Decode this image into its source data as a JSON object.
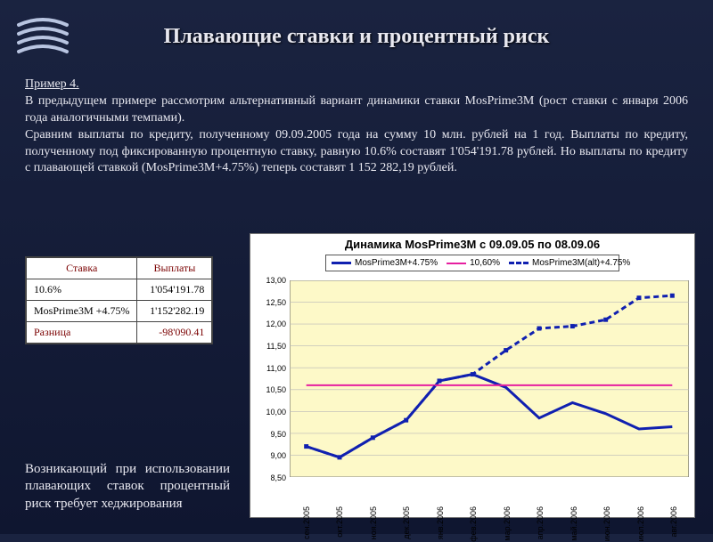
{
  "title": "Плавающие ставки и процентный риск",
  "example_header": "Пример 4.",
  "body_p1": "В предыдущем примере рассмотрим альтернативный вариант динамики ставки MosPrime3M (рост ставки с января 2006 года аналогичными темпами).",
  "body_p2": "Сравним выплаты по кредиту, полученному 09.09.2005 года на сумму 10 млн. рублей на 1 год. Выплаты по кредиту, полученному под фиксированную процентную ставку, равную 10.6% составят 1'054'191.78 рублей. Но выплаты по кредиту с плавающей ставкой (MosPrime3M+4.75%) теперь составят 1 152 282,19 рублей.",
  "table": {
    "col1_header": "Ставка",
    "col2_header": "Выплаты",
    "rows": [
      {
        "rate": "10.6%",
        "pay": "1'054'191.78"
      },
      {
        "rate": "MosPrime3M +4.75%",
        "pay": "1'152'282.19"
      }
    ],
    "diff_label": "Разница",
    "diff_value": "-98'090.41"
  },
  "conclusion": "Возникающий при использовании плавающих ставок процентный риск требует хеджирования",
  "chart": {
    "title": "Динамика MosPrime3M с 09.09.05 по 08.09.06",
    "type": "line",
    "background_color": "#fdf9c8",
    "grid_color": "#b8b8b8",
    "ylim": [
      8.5,
      13.0
    ],
    "ytick_step": 0.5,
    "y_format": "0,00",
    "x_categories": [
      "сен.2005",
      "окт.2005",
      "ноя.2005",
      "дек.2005",
      "янв.2006",
      "фев.2006",
      "мар.2006",
      "апр.2006",
      "май.2006",
      "июн.2006",
      "июл.2006",
      "авг.2006"
    ],
    "series": [
      {
        "name": "MosPrime3M+4.75%",
        "color": "#1020b0",
        "width": 3,
        "dash": "none",
        "values": [
          9.2,
          8.95,
          9.4,
          9.8,
          10.7,
          10.85,
          10.55,
          9.85,
          10.2,
          9.95,
          9.6,
          9.65
        ]
      },
      {
        "name": "10,60%",
        "color": "#e61fa0",
        "width": 2,
        "dash": "none",
        "values": [
          10.6,
          10.6,
          10.6,
          10.6,
          10.6,
          10.6,
          10.6,
          10.6,
          10.6,
          10.6,
          10.6,
          10.6
        ]
      },
      {
        "name": "MosPrime3M(alt)+4.75%",
        "color": "#1020b0",
        "width": 3,
        "dash": "6,4",
        "marker": "square",
        "values": [
          9.2,
          8.95,
          9.4,
          9.8,
          10.7,
          10.85,
          11.4,
          11.9,
          11.95,
          12.1,
          12.6,
          12.65
        ]
      }
    ]
  },
  "colors": {
    "page_bg_top": "#1a2340",
    "page_bg_bottom": "#0f1630",
    "text": "#e8e8f0",
    "table_header_text": "#7a0000"
  }
}
